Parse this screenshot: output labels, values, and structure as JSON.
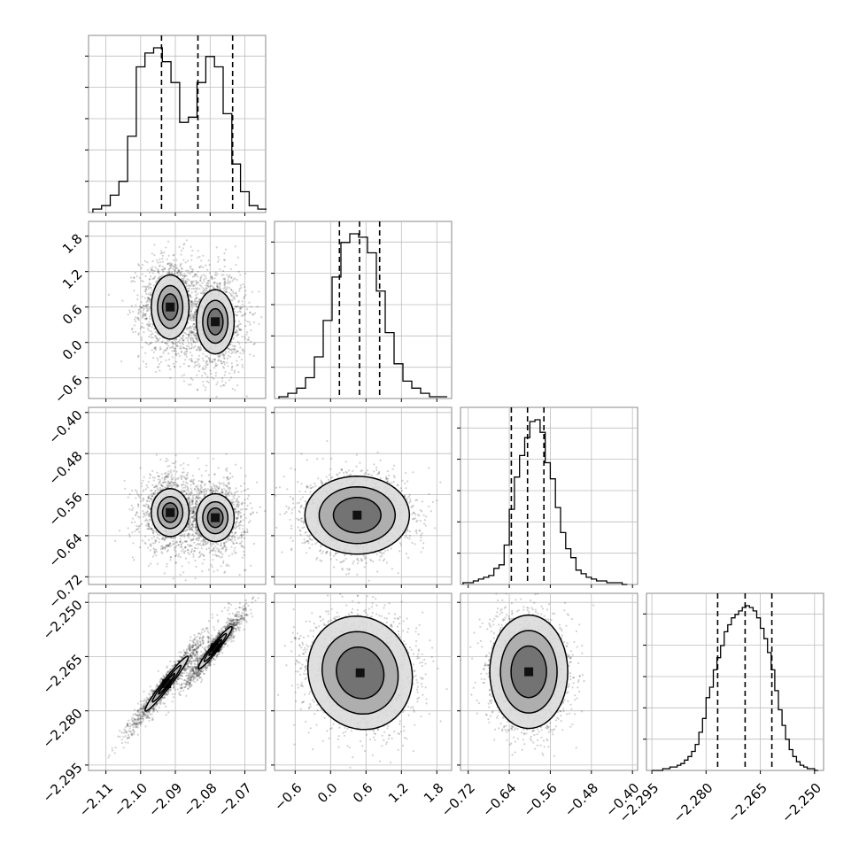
{
  "chart_data": {
    "type": "corner",
    "grid": true,
    "parameters": [
      {
        "index": 0,
        "range": [
          -2.115,
          -2.064
        ],
        "ticks": [
          -2.11,
          -2.1,
          -2.09,
          -2.08,
          -2.07
        ],
        "tick_labels": [
          "−2.11",
          "−2.10",
          "−2.09",
          "−2.08",
          "−2.07"
        ],
        "quantiles": [
          -2.094,
          -2.0835,
          -2.0735
        ]
      },
      {
        "index": 1,
        "range": [
          -0.95,
          2.05
        ],
        "ticks": [
          -0.6,
          0.0,
          0.6,
          1.2,
          1.8
        ],
        "tick_labels": [
          "−0.6",
          "0.0",
          "0.6",
          "1.2",
          "1.8"
        ],
        "quantiles": [
          0.15,
          0.49,
          0.83
        ]
      },
      {
        "index": 2,
        "range": [
          -0.735,
          -0.39
        ],
        "ticks": [
          -0.72,
          -0.64,
          -0.56,
          -0.48,
          -0.4
        ],
        "tick_labels": [
          "−0.72",
          "−0.64",
          "−0.56",
          "−0.48",
          "−0.40"
        ],
        "quantiles": [
          -0.636,
          -0.6045,
          -0.5725
        ]
      },
      {
        "index": 3,
        "range": [
          -2.2965,
          -2.2475
        ],
        "ticks": [
          -2.295,
          -2.28,
          -2.265,
          -2.25
        ],
        "tick_labels": [
          "−2.295",
          "−2.280",
          "−2.265",
          "−2.250"
        ],
        "quantiles": [
          -2.2768,
          -2.2692,
          -2.2618
        ]
      }
    ],
    "histograms": [
      {
        "param": 0,
        "bins": [
          -2.1125,
          -2.11,
          -2.1075,
          -2.105,
          -2.1025,
          -2.1,
          -2.0975,
          -2.095,
          -2.0925,
          -2.09,
          -2.0875,
          -2.085,
          -2.0825,
          -2.08,
          -2.0775,
          -2.075,
          -2.0725,
          -2.07,
          -2.0675,
          -2.065
        ],
        "counts": [
          2,
          4,
          10,
          18,
          44,
          84,
          92,
          95,
          87,
          75,
          52,
          55,
          75,
          90,
          84,
          57,
          28,
          12,
          4,
          2
        ]
      },
      {
        "param": 1,
        "bins": [
          -0.8,
          -0.65,
          -0.5,
          -0.35,
          -0.2,
          -0.05,
          0.1,
          0.25,
          0.4,
          0.55,
          0.7,
          0.85,
          1.0,
          1.15,
          1.3,
          1.45,
          1.6,
          1.75,
          1.9
        ],
        "counts": [
          1,
          3,
          6,
          12,
          24,
          45,
          70,
          90,
          95,
          93,
          84,
          62,
          38,
          20,
          10,
          6,
          3,
          1,
          1
        ]
      },
      {
        "param": 2,
        "bins": [
          -0.725,
          -0.715,
          -0.705,
          -0.695,
          -0.685,
          -0.675,
          -0.665,
          -0.655,
          -0.645,
          -0.635,
          -0.625,
          -0.615,
          -0.605,
          -0.595,
          -0.585,
          -0.575,
          -0.565,
          -0.555,
          -0.545,
          -0.535,
          -0.525,
          -0.515,
          -0.505,
          -0.495,
          -0.485,
          -0.475,
          -0.465,
          -0.455,
          -0.445,
          -0.435,
          -0.425,
          -0.415
        ],
        "counts": [
          1,
          1,
          2,
          3,
          4,
          5,
          9,
          11,
          22,
          42,
          60,
          72,
          82,
          91,
          92,
          85,
          68,
          59,
          43,
          29,
          20,
          15,
          8,
          6,
          4,
          3,
          2,
          2,
          1,
          1,
          1,
          0
        ]
      },
      {
        "param": 3,
        "bins": [
          -2.2945,
          -2.2935,
          -2.2925,
          -2.2915,
          -2.2905,
          -2.2895,
          -2.2885,
          -2.2875,
          -2.2865,
          -2.2855,
          -2.2845,
          -2.2835,
          -2.2825,
          -2.2815,
          -2.2805,
          -2.2795,
          -2.2785,
          -2.2775,
          -2.2765,
          -2.2755,
          -2.2745,
          -2.2735,
          -2.2725,
          -2.2715,
          -2.2705,
          -2.2695,
          -2.2685,
          -2.2675,
          -2.2665,
          -2.2655,
          -2.2645,
          -2.2635,
          -2.2625,
          -2.2615,
          -2.2605,
          -2.2595,
          -2.2585,
          -2.2575,
          -2.2565,
          -2.2555,
          -2.2545,
          -2.2535,
          -2.2525,
          -2.2515,
          -2.2505,
          -2.2495
        ],
        "counts": [
          0,
          0,
          0,
          1,
          1,
          2,
          2,
          3,
          4,
          6,
          8,
          11,
          15,
          22,
          30,
          42,
          48,
          58,
          65,
          72,
          80,
          84,
          88,
          90,
          92,
          94,
          95,
          94,
          92,
          88,
          82,
          76,
          68,
          58,
          46,
          35,
          26,
          18,
          12,
          8,
          5,
          3,
          2,
          1,
          1,
          0
        ]
      }
    ],
    "pairs": [
      {
        "x": 0,
        "y": 1,
        "modes": [
          {
            "center": [
              -2.0915,
              0.6
            ],
            "spread": [
              0.0035,
              0.35
            ],
            "rho": 0.0
          },
          {
            "center": [
              -2.0785,
              0.35
            ],
            "spread": [
              0.0035,
              0.35
            ],
            "rho": 0.0
          }
        ],
        "contour_levels": [
          [
            1.0,
            0.55
          ],
          [
            1.6,
            0.9
          ],
          [
            2.2,
            1.35
          ]
        ]
      },
      {
        "x": 0,
        "y": 2,
        "modes": [
          {
            "center": [
              -2.0915,
              -0.595
            ],
            "spread": [
              0.0035,
              0.03
            ],
            "rho": 0.0
          },
          {
            "center": [
              -2.0785,
              -0.605
            ],
            "spread": [
              0.0035,
              0.03
            ],
            "rho": 0.0
          }
        ],
        "contour_levels": [
          [
            1.0,
            0.55
          ],
          [
            1.6,
            0.9
          ],
          [
            2.2,
            1.35
          ]
        ]
      },
      {
        "x": 0,
        "y": 3,
        "modes": [
          {
            "center": [
              -2.0925,
              -2.2725
            ],
            "spread": [
              0.0045,
              0.0055
            ],
            "rho": 0.97
          },
          {
            "center": [
              -2.0785,
              -2.2625
            ],
            "spread": [
              0.0035,
              0.0042
            ],
            "rho": 0.96
          }
        ],
        "contour_levels": [
          [
            1.0,
            0.45
          ],
          [
            1.6,
            0.8
          ],
          [
            2.2,
            1.2
          ]
        ]
      },
      {
        "x": 1,
        "y": 2,
        "modes": [
          {
            "center": [
              0.45,
              -0.6
            ],
            "spread": [
              0.35,
              0.03
            ],
            "rho": 0.0
          }
        ],
        "contour_levels": [
          [
            1.0,
            1.0
          ],
          [
            1.6,
            1.6
          ],
          [
            2.2,
            2.2
          ]
        ]
      },
      {
        "x": 1,
        "y": 3,
        "modes": [
          {
            "center": [
              0.5,
              -2.2695
            ],
            "spread": [
              0.35,
              0.0062
            ],
            "rho": -0.08
          }
        ],
        "contour_levels": [
          [
            1.0,
            1.0
          ],
          [
            1.6,
            1.6
          ],
          [
            2.2,
            2.2
          ]
        ]
      },
      {
        "x": 2,
        "y": 3,
        "modes": [
          {
            "center": [
              -0.602,
              -2.2692
            ],
            "spread": [
              0.03,
              0.0062
            ],
            "rho": 0.0
          }
        ],
        "contour_levels": [
          [
            1.0,
            1.0
          ],
          [
            1.6,
            1.6
          ],
          [
            2.2,
            2.2
          ]
        ]
      }
    ],
    "colors": {
      "axis": "#888888",
      "grid": "#bdbdbd",
      "points": "#000000",
      "line": "#000000"
    }
  }
}
